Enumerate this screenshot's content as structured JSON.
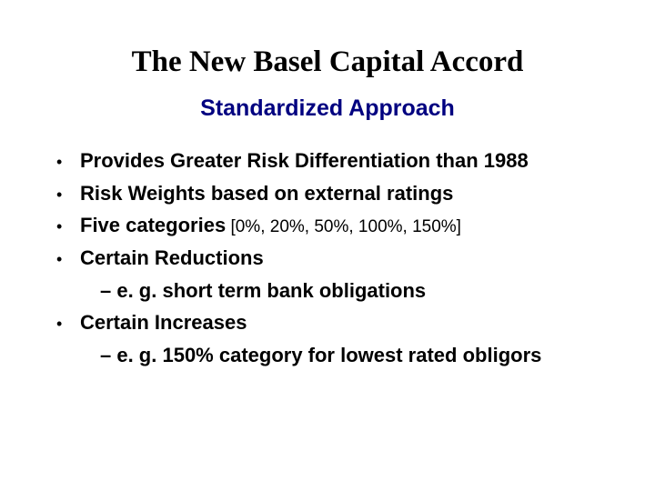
{
  "title": "The New Basel Capital Accord",
  "subtitle": "Standardized Approach",
  "bullets": [
    {
      "text": "Provides Greater Risk Differentiation than 1988"
    },
    {
      "text": "Risk Weights based on external ratings"
    },
    {
      "text": "Five categories",
      "bracket": " [0%, 20%, 50%, 100%, 150%]"
    },
    {
      "text": "Certain Reductions",
      "sub": "– e. g. short term bank obligations"
    },
    {
      "text": "Certain Increases",
      "sub": "– e. g. 150% category for lowest  rated obligors"
    }
  ],
  "colors": {
    "title": "#000000",
    "subtitle": "#000080",
    "body": "#000000",
    "background": "#ffffff"
  },
  "fonts": {
    "title_family": "Times New Roman",
    "body_family": "Arial",
    "title_size_pt": 33,
    "subtitle_size_pt": 25,
    "body_size_pt": 22,
    "bracket_size_pt": 19
  }
}
